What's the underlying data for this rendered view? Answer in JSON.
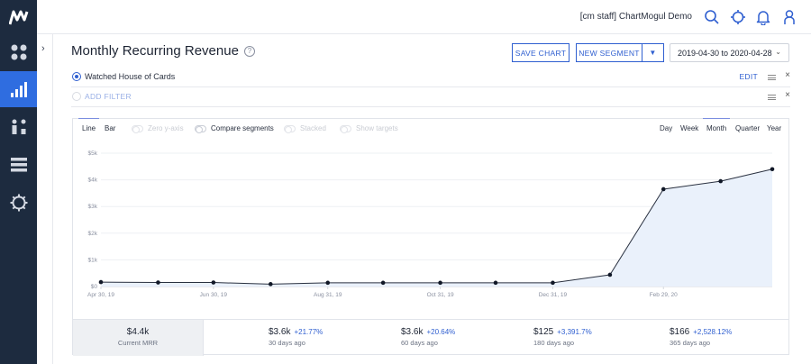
{
  "topbar": {
    "staff_label": "[cm staff] ChartMogul Demo"
  },
  "header": {
    "title": "Monthly Recurring Revenue",
    "help": "?",
    "save_chart": "SAVE CHART",
    "new_segment": "NEW SEGMENT",
    "caret": "▼",
    "date_range": "2019-04-30 to 2020-04-28"
  },
  "filters": {
    "segment_label": "Watched House of Cards",
    "edit": "EDIT",
    "add_filter": "ADD FILTER"
  },
  "chart_options": {
    "line": "Line",
    "bar": "Bar",
    "zero_axis": "Zero y-axis",
    "compare": "Compare segments",
    "stacked": "Stacked",
    "targets": "Show targets",
    "day": "Day",
    "week": "Week",
    "month": "Month",
    "quarter": "Quarter",
    "year": "Year"
  },
  "chart_data": {
    "type": "line",
    "x": [
      "2019-04-30",
      "2019-05-31",
      "2019-06-30",
      "2019-07-31",
      "2019-08-31",
      "2019-09-30",
      "2019-10-31",
      "2019-11-30",
      "2019-12-31",
      "2020-01-31",
      "2020-02-29",
      "2020-03-31",
      "2020-04-28"
    ],
    "values": [
      166,
      150,
      150,
      90,
      140,
      140,
      140,
      140,
      140,
      440,
      3650,
      3950,
      4400
    ],
    "ylim": [
      0,
      5000
    ],
    "yticks": [
      "$0",
      "$1k",
      "$2k",
      "$3k",
      "$4k",
      "$5k"
    ],
    "xticks": [
      "Apr 30, 19",
      "Jun 30, 19",
      "Aug 31, 19",
      "Oct 31, 19",
      "Dec 31, 19",
      "Feb 29, 20"
    ],
    "grid": true,
    "colors": {
      "line": "#2a3140",
      "fill": "#eaf1fb"
    }
  },
  "summary": {
    "current": {
      "value": "$4.4k",
      "label": "Current MRR"
    },
    "stats": [
      {
        "value": "$3.6k",
        "pct": "+21.77%",
        "label": "30 days ago"
      },
      {
        "value": "$3.6k",
        "pct": "+20.64%",
        "label": "60 days ago"
      },
      {
        "value": "$125",
        "pct": "+3,391.7%",
        "label": "180 days ago"
      },
      {
        "value": "$166",
        "pct": "+2,528.12%",
        "label": "365 days ago"
      }
    ]
  }
}
